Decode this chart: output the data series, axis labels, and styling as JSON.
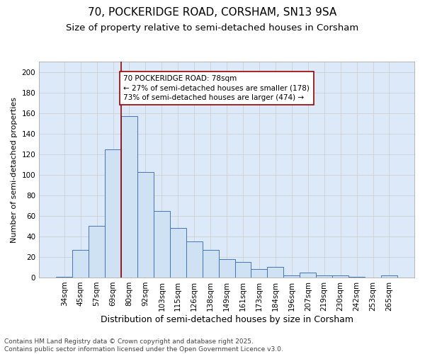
{
  "title1": "70, POCKERIDGE ROAD, CORSHAM, SN13 9SA",
  "title2": "Size of property relative to semi-detached houses in Corsham",
  "xlabel": "Distribution of semi-detached houses by size in Corsham",
  "ylabel": "Number of semi-detached properties",
  "categories": [
    "34sqm",
    "45sqm",
    "57sqm",
    "69sqm",
    "80sqm",
    "92sqm",
    "103sqm",
    "115sqm",
    "126sqm",
    "138sqm",
    "149sqm",
    "161sqm",
    "173sqm",
    "184sqm",
    "196sqm",
    "207sqm",
    "219sqm",
    "230sqm",
    "242sqm",
    "253sqm",
    "265sqm"
  ],
  "values": [
    1,
    27,
    50,
    125,
    157,
    103,
    65,
    48,
    35,
    27,
    18,
    15,
    8,
    10,
    2,
    5,
    2,
    2,
    1,
    0,
    2
  ],
  "bar_color": "#cfe2f3",
  "bar_edge_color": "#4472c4",
  "highlight_line_color": "#990000",
  "highlight_line_index": 4,
  "annotation_text": "70 POCKERIDGE ROAD: 78sqm\n← 27% of semi-detached houses are smaller (178)\n73% of semi-detached houses are larger (474) →",
  "annotation_box_color": "#990000",
  "ylim": [
    0,
    210
  ],
  "yticks": [
    0,
    20,
    40,
    60,
    80,
    100,
    120,
    140,
    160,
    180,
    200
  ],
  "grid_color": "#cccccc",
  "background_color": "#dce9f9",
  "footer_text": "Contains HM Land Registry data © Crown copyright and database right 2025.\nContains public sector information licensed under the Open Government Licence v3.0.",
  "title1_fontsize": 11,
  "title2_fontsize": 9.5,
  "xlabel_fontsize": 9,
  "ylabel_fontsize": 8,
  "tick_fontsize": 7.5,
  "annotation_fontsize": 7.5,
  "footer_fontsize": 6.5
}
